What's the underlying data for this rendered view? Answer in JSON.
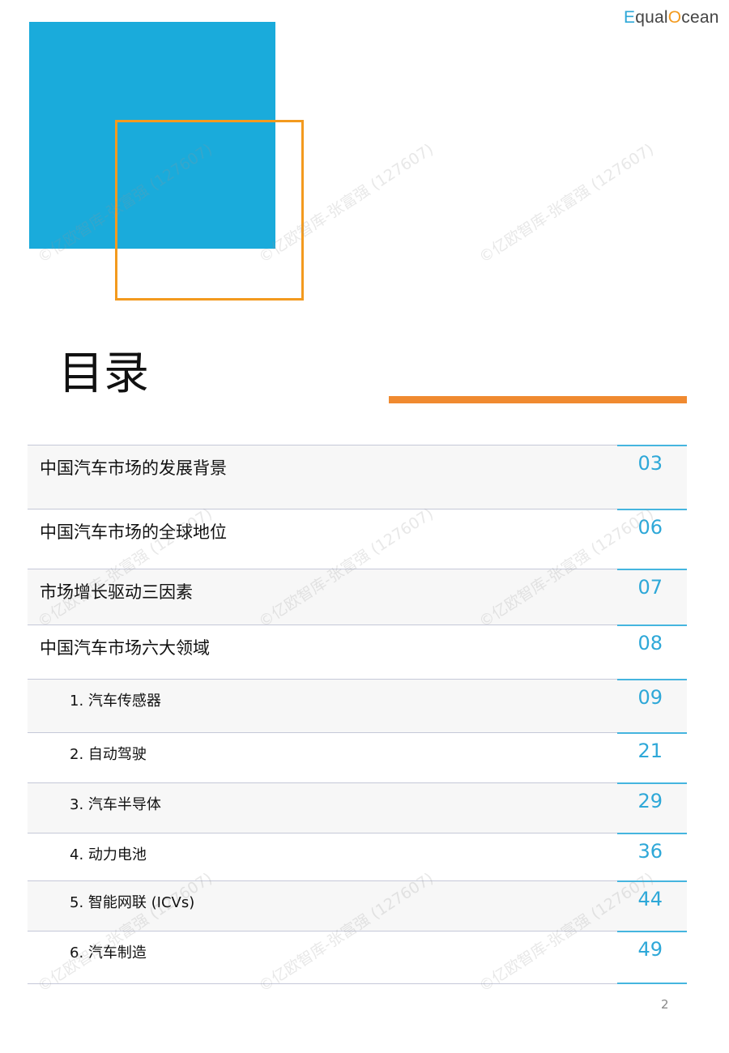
{
  "logo": {
    "text_e": "E",
    "text_qual": "qual",
    "text_o": "O",
    "text_cean": "cean"
  },
  "title": "目录",
  "toc": [
    {
      "label": "中国汽车市场的发展背景",
      "page": "03",
      "level": "main"
    },
    {
      "label": "中国汽车市场的全球地位",
      "page": "06",
      "level": "main"
    },
    {
      "label": "市场增长驱动三因素",
      "page": "07",
      "level": "main"
    },
    {
      "label": "中国汽车市场六大领域",
      "page": "08",
      "level": "main"
    },
    {
      "label": "1.  汽车传感器",
      "page": "09",
      "level": "sub"
    },
    {
      "label": "2.  自动驾驶",
      "page": "21",
      "level": "sub"
    },
    {
      "label": "3.  汽车半导体",
      "page": "29",
      "level": "sub"
    },
    {
      "label": "4.  动力电池",
      "page": "36",
      "level": "sub"
    },
    {
      "label": "5. 智能网联 (ICVs)",
      "page": "44",
      "level": "sub"
    },
    {
      "label": "6. 汽车制造",
      "page": "49",
      "level": "sub"
    }
  ],
  "page_number": "2",
  "watermark": "©亿欧智库-张富强 (127607)",
  "colors": {
    "blue": "#1aabdb",
    "orange": "#f39a1e",
    "accent_bar": "#f08a30",
    "page_num": "#2ea8d8"
  }
}
